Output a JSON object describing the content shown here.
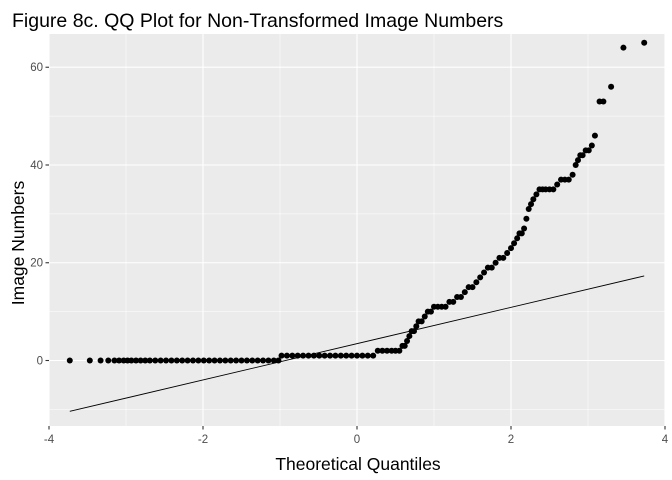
{
  "chart_data": {
    "type": "scatter",
    "title": "Figure 8c. QQ Plot for Non-Transformed Image Numbers",
    "xlabel": "Theoretical Quantiles",
    "ylabel": "Image Numbers",
    "xlim": [
      -4.0,
      4.0
    ],
    "ylim": [
      -13.4,
      66.8
    ],
    "x_ticks": [
      -4,
      -2,
      0,
      2,
      4
    ],
    "y_ticks": [
      0,
      20,
      40,
      60
    ],
    "x_tick_labels": [
      "-4",
      "-2",
      "0",
      "2",
      "4"
    ],
    "y_tick_labels": [
      "0",
      "20",
      "40",
      "60"
    ],
    "grid": true,
    "legend": "none",
    "colors": {
      "panel": "#ebebeb",
      "grid": "#ffffff",
      "points": "#000000",
      "line": "#000000"
    },
    "reference_line": {
      "x": [
        -3.73,
        3.73
      ],
      "y": [
        -10.4,
        17.3
      ]
    },
    "points": [
      {
        "x": -3.73,
        "y": 0
      },
      {
        "x": -3.47,
        "y": 0
      },
      {
        "x": -3.33,
        "y": 0
      },
      {
        "x": -3.23,
        "y": 0
      },
      {
        "x": -3.15,
        "y": 0
      },
      {
        "x": -3.09,
        "y": 0
      },
      {
        "x": -3.03,
        "y": 0
      },
      {
        "x": -2.98,
        "y": 0
      },
      {
        "x": -2.93,
        "y": 0
      },
      {
        "x": -2.87,
        "y": 0
      },
      {
        "x": -2.81,
        "y": 0
      },
      {
        "x": -2.75,
        "y": 0
      },
      {
        "x": -2.69,
        "y": 0
      },
      {
        "x": -2.62,
        "y": 0
      },
      {
        "x": -2.55,
        "y": 0
      },
      {
        "x": -2.48,
        "y": 0
      },
      {
        "x": -2.41,
        "y": 0
      },
      {
        "x": -2.34,
        "y": 0
      },
      {
        "x": -2.27,
        "y": 0
      },
      {
        "x": -2.2,
        "y": 0
      },
      {
        "x": -2.13,
        "y": 0
      },
      {
        "x": -2.06,
        "y": 0
      },
      {
        "x": -1.99,
        "y": 0
      },
      {
        "x": -1.92,
        "y": 0
      },
      {
        "x": -1.85,
        "y": 0
      },
      {
        "x": -1.78,
        "y": 0
      },
      {
        "x": -1.71,
        "y": 0
      },
      {
        "x": -1.64,
        "y": 0
      },
      {
        "x": -1.57,
        "y": 0
      },
      {
        "x": -1.5,
        "y": 0
      },
      {
        "x": -1.43,
        "y": 0
      },
      {
        "x": -1.36,
        "y": 0
      },
      {
        "x": -1.29,
        "y": 0
      },
      {
        "x": -1.22,
        "y": 0
      },
      {
        "x": -1.15,
        "y": 0
      },
      {
        "x": -1.08,
        "y": 0
      },
      {
        "x": -1.02,
        "y": 0
      },
      {
        "x": -0.98,
        "y": 1
      },
      {
        "x": -0.91,
        "y": 1
      },
      {
        "x": -0.84,
        "y": 1
      },
      {
        "x": -0.77,
        "y": 1
      },
      {
        "x": -0.7,
        "y": 1
      },
      {
        "x": -0.63,
        "y": 1
      },
      {
        "x": -0.56,
        "y": 1
      },
      {
        "x": -0.49,
        "y": 1
      },
      {
        "x": -0.42,
        "y": 1
      },
      {
        "x": -0.35,
        "y": 1
      },
      {
        "x": -0.28,
        "y": 1
      },
      {
        "x": -0.21,
        "y": 1
      },
      {
        "x": -0.14,
        "y": 1
      },
      {
        "x": -0.07,
        "y": 1
      },
      {
        "x": 0.0,
        "y": 1
      },
      {
        "x": 0.07,
        "y": 1
      },
      {
        "x": 0.14,
        "y": 1
      },
      {
        "x": 0.21,
        "y": 1
      },
      {
        "x": 0.27,
        "y": 2
      },
      {
        "x": 0.33,
        "y": 2
      },
      {
        "x": 0.39,
        "y": 2
      },
      {
        "x": 0.45,
        "y": 2
      },
      {
        "x": 0.5,
        "y": 2
      },
      {
        "x": 0.55,
        "y": 2
      },
      {
        "x": 0.59,
        "y": 3
      },
      {
        "x": 0.62,
        "y": 3
      },
      {
        "x": 0.65,
        "y": 4
      },
      {
        "x": 0.68,
        "y": 5
      },
      {
        "x": 0.71,
        "y": 6
      },
      {
        "x": 0.74,
        "y": 6
      },
      {
        "x": 0.77,
        "y": 7
      },
      {
        "x": 0.8,
        "y": 8
      },
      {
        "x": 0.84,
        "y": 8
      },
      {
        "x": 0.88,
        "y": 9
      },
      {
        "x": 0.92,
        "y": 10
      },
      {
        "x": 0.96,
        "y": 10
      },
      {
        "x": 1.0,
        "y": 11
      },
      {
        "x": 1.05,
        "y": 11
      },
      {
        "x": 1.1,
        "y": 11
      },
      {
        "x": 1.15,
        "y": 11
      },
      {
        "x": 1.2,
        "y": 12
      },
      {
        "x": 1.25,
        "y": 12
      },
      {
        "x": 1.3,
        "y": 13
      },
      {
        "x": 1.35,
        "y": 13
      },
      {
        "x": 1.4,
        "y": 14
      },
      {
        "x": 1.45,
        "y": 15
      },
      {
        "x": 1.5,
        "y": 15
      },
      {
        "x": 1.55,
        "y": 16
      },
      {
        "x": 1.6,
        "y": 17
      },
      {
        "x": 1.65,
        "y": 18
      },
      {
        "x": 1.7,
        "y": 19
      },
      {
        "x": 1.75,
        "y": 19
      },
      {
        "x": 1.8,
        "y": 20
      },
      {
        "x": 1.85,
        "y": 21
      },
      {
        "x": 1.9,
        "y": 21
      },
      {
        "x": 1.95,
        "y": 22
      },
      {
        "x": 2.0,
        "y": 23
      },
      {
        "x": 2.04,
        "y": 24
      },
      {
        "x": 2.08,
        "y": 25
      },
      {
        "x": 2.11,
        "y": 26
      },
      {
        "x": 2.14,
        "y": 26
      },
      {
        "x": 2.17,
        "y": 27
      },
      {
        "x": 2.2,
        "y": 29
      },
      {
        "x": 2.23,
        "y": 31
      },
      {
        "x": 2.26,
        "y": 32
      },
      {
        "x": 2.29,
        "y": 33
      },
      {
        "x": 2.33,
        "y": 34
      },
      {
        "x": 2.37,
        "y": 35
      },
      {
        "x": 2.41,
        "y": 35
      },
      {
        "x": 2.45,
        "y": 35
      },
      {
        "x": 2.5,
        "y": 35
      },
      {
        "x": 2.55,
        "y": 35
      },
      {
        "x": 2.6,
        "y": 36
      },
      {
        "x": 2.65,
        "y": 37
      },
      {
        "x": 2.7,
        "y": 37
      },
      {
        "x": 2.75,
        "y": 37
      },
      {
        "x": 2.8,
        "y": 38
      },
      {
        "x": 2.84,
        "y": 40
      },
      {
        "x": 2.87,
        "y": 41
      },
      {
        "x": 2.9,
        "y": 42
      },
      {
        "x": 2.93,
        "y": 42
      },
      {
        "x": 2.97,
        "y": 43
      },
      {
        "x": 3.01,
        "y": 43
      },
      {
        "x": 3.05,
        "y": 44
      },
      {
        "x": 3.09,
        "y": 46
      },
      {
        "x": 3.15,
        "y": 53
      },
      {
        "x": 3.2,
        "y": 53
      },
      {
        "x": 3.3,
        "y": 56
      },
      {
        "x": 3.46,
        "y": 64
      },
      {
        "x": 3.73,
        "y": 65
      }
    ]
  }
}
